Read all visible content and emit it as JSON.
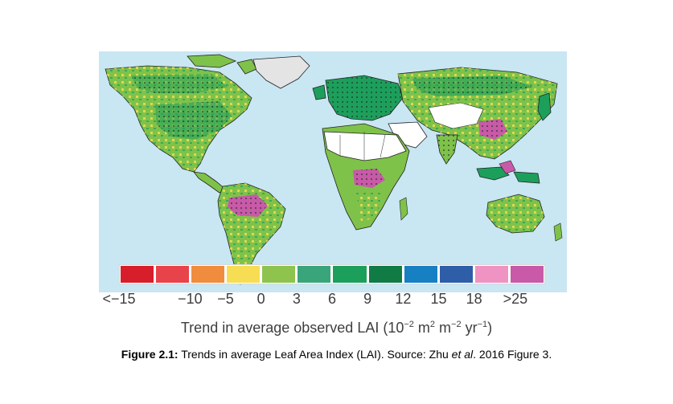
{
  "legend": {
    "swatch_colors": [
      "#d71f2b",
      "#e8434a",
      "#f08c3e",
      "#f7dd53",
      "#8ec44e",
      "#3aa57a",
      "#1d9f5c",
      "#117b46",
      "#1780c3",
      "#2f5ea8",
      "#ef93c3",
      "#c85aa8"
    ],
    "tick_labels": [
      "<−15",
      "−10",
      "−5",
      "0",
      "3",
      "6",
      "9",
      "12",
      "15",
      "18",
      ">25"
    ],
    "axis_title": "Trend in average observed LAI (10",
    "axis_exp1": "−2",
    "axis_mid1": " m",
    "axis_exp2": "2",
    "axis_mid2": " m",
    "axis_exp3": "−2",
    "axis_mid3": " yr",
    "axis_exp4": "−1",
    "axis_end": ")"
  },
  "caption": {
    "bold": "Figure 2.1:",
    "text_before_italic": " Trends in average Leaf Area Index (LAI). Source: Zhu ",
    "italic": "et al",
    "text_after_italic": ". 2016 Figure 3."
  },
  "map": {
    "ocean_color": "#c9e6f3",
    "land_green": "#7fc24a",
    "dark_green": "#1d9f5c",
    "no_data": "#ffffff",
    "ice": "#e4e4e4"
  }
}
